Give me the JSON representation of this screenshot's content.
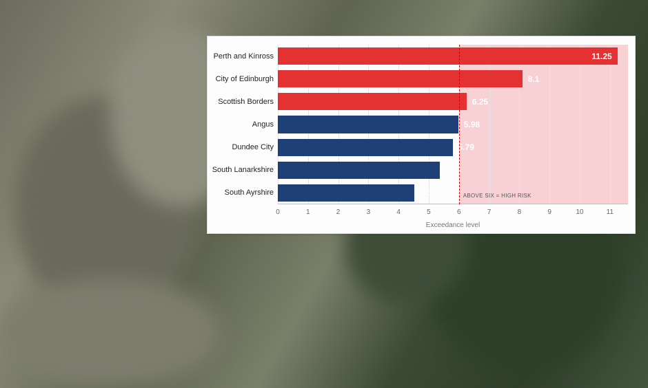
{
  "chart": {
    "type": "bar-horizontal",
    "background_color": "#fdfdfd",
    "border_color": "#d9d9d9",
    "grid_color": "#e3e3e3",
    "x_axis": {
      "label": "Exceedance level",
      "min": 0,
      "max": 11.6,
      "tick_step": 1,
      "ticks": [
        0,
        1,
        2,
        3,
        4,
        5,
        6,
        7,
        8,
        9,
        10,
        11
      ]
    },
    "threshold": {
      "value": 6,
      "line_color": "#cc0000",
      "zone_color": "#f7d1d4",
      "label": "ABOVE SIX = HIGH RISK"
    },
    "label_fontsize": 11,
    "value_fontsize": 12,
    "value_font_weight": "700",
    "tick_fontsize": 10,
    "items": [
      {
        "label": "Perth and Kinross",
        "value": 11.25,
        "bar_color": "#e43131",
        "value_inside": true
      },
      {
        "label": "City of Edinburgh",
        "value": 8.1,
        "bar_color": "#e43131",
        "value_inside": false
      },
      {
        "label": "Scottish Borders",
        "value": 6.25,
        "bar_color": "#e43131",
        "value_inside": false
      },
      {
        "label": "Angus",
        "value": 5.98,
        "bar_color": "#1f3f77",
        "value_inside": false
      },
      {
        "label": "Dundee City",
        "value": 5.79,
        "bar_color": "#1f3f77",
        "value_inside": false
      },
      {
        "label": "South Lanarkshire",
        "value": 5.36,
        "bar_color": "#1f3f77",
        "value_inside": false
      },
      {
        "label": "South Ayrshire",
        "value": 4.52,
        "bar_color": "#1f3f77",
        "value_inside": false
      }
    ]
  }
}
